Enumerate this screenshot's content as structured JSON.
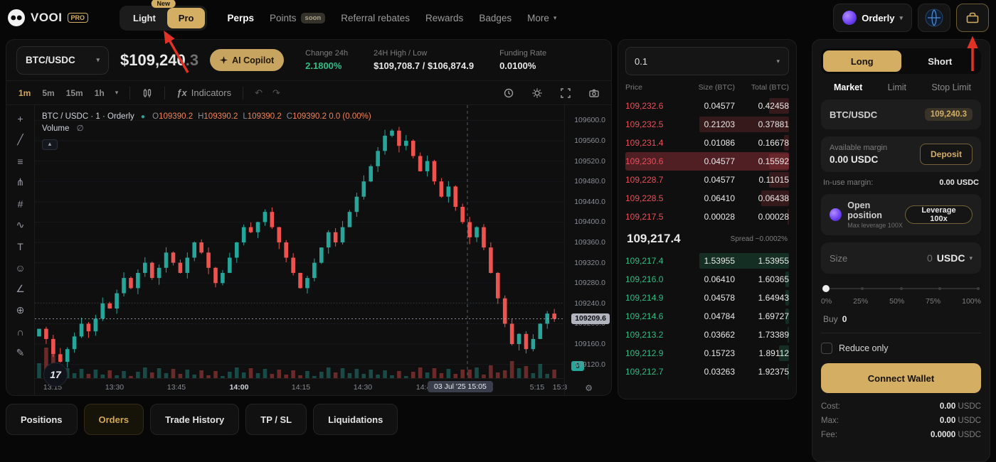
{
  "colors": {
    "accent_tan": "#d3ae63",
    "green": "#2ebd85",
    "red": "#e8505b",
    "chart_up": "#26a69a",
    "chart_down": "#ef5350"
  },
  "navbar": {
    "logo_text": "VOOI",
    "logo_badge": "PRO",
    "mode_toggle": {
      "new_badge": "New",
      "light": "Light",
      "pro": "Pro"
    },
    "links": [
      {
        "label": "Perps",
        "active": true
      },
      {
        "label": "Points",
        "badge": "soon"
      },
      {
        "label": "Referral rebates"
      },
      {
        "label": "Rewards"
      },
      {
        "label": "Badges"
      },
      {
        "label": "More",
        "chevron": true
      }
    ],
    "broker_label": "Orderly"
  },
  "market_header": {
    "pair": "BTC/USDC",
    "price_main": "$109,240",
    "price_fraction": ".3",
    "ai_copilot_label": "AI Copilot",
    "stats": [
      {
        "label": "Change 24h",
        "value": "2.1800%",
        "color": "green"
      },
      {
        "label": "24H High / Low",
        "value": "$109,708.7 / $106,874.9",
        "color": "white"
      },
      {
        "label": "Funding Rate",
        "value": "0.0100%",
        "color": "white"
      }
    ]
  },
  "chart_toolbar": {
    "timeframes": [
      "1m",
      "5m",
      "15m",
      "1h"
    ],
    "active_timeframe": "1m",
    "fx_label": "ƒx",
    "indicators_label": "Indicators"
  },
  "chart": {
    "legend_title": "BTC / USDC · 1 · Orderly",
    "ohlc": [
      {
        "k": "O",
        "v": "109390.2"
      },
      {
        "k": "H",
        "v": "109390.2"
      },
      {
        "k": "L",
        "v": "109390.2"
      },
      {
        "k": "C",
        "v": "109390.2"
      }
    ],
    "change": "0.0 (0.00%)",
    "volume_label": "Volume",
    "volume_value": "∅",
    "tv_logo_text": "17",
    "current_price": "109209.6",
    "volume_badge": "0",
    "crosshair_date": "03 Jul '25  15:05",
    "axis_labels": [
      "109600.0",
      "109560.0",
      "109520.0",
      "109480.0",
      "109440.0",
      "109400.0",
      "109360.0",
      "109320.0",
      "109280.0",
      "109240.0",
      "109200.0",
      "109160.0",
      "109120.0"
    ],
    "time_labels": [
      "13:15",
      "13:30",
      "13:45",
      "14:00",
      "14:15",
      "14:30",
      "14:45"
    ],
    "time_labels_after": [
      "5:15",
      "15:3"
    ],
    "tools": [
      {
        "name": "crosshair",
        "glyph": "+"
      },
      {
        "name": "trend-line",
        "glyph": "╱"
      },
      {
        "name": "horizontal-line",
        "glyph": "≡"
      },
      {
        "name": "pitchfork",
        "glyph": "⋔"
      },
      {
        "name": "fib-retracement",
        "glyph": "#"
      },
      {
        "name": "brush",
        "glyph": "∿"
      },
      {
        "name": "text-tool",
        "glyph": "T"
      },
      {
        "name": "emoji",
        "glyph": "☺"
      },
      {
        "name": "measure",
        "glyph": "∠"
      },
      {
        "name": "zoom",
        "glyph": "⊕"
      },
      {
        "name": "magnet",
        "glyph": "∩"
      },
      {
        "name": "draw",
        "glyph": "✎"
      }
    ]
  },
  "chart_data": {
    "type": "candlestick",
    "symbol": "BTC/USDC",
    "interval": "1m",
    "price_range": [
      109120,
      109600
    ],
    "current_price": 109209.6,
    "closes": [
      109190,
      109170,
      109140,
      109125,
      109150,
      109175,
      109200,
      109185,
      109210,
      109240,
      109230,
      109260,
      109290,
      109270,
      109300,
      109320,
      109290,
      109310,
      109340,
      109320,
      109300,
      109330,
      109360,
      109340,
      109310,
      109280,
      109300,
      109330,
      109360,
      109390,
      109380,
      109400,
      109420,
      109390,
      109360,
      109330,
      109300,
      109270,
      109290,
      109320,
      109350,
      109380,
      109360,
      109390,
      109420,
      109450,
      109480,
      109510,
      109540,
      109570,
      109580,
      109550,
      109560,
      109530,
      109500,
      109520,
      109480,
      109450,
      109470,
      109430,
      109400,
      109370,
      109390,
      109350,
      109300,
      109250,
      109200,
      109160,
      109180,
      109150,
      109170,
      109200,
      109220,
      109209.6
    ]
  },
  "orderbook": {
    "grouping": "0.1",
    "headers": [
      "Price",
      "Size (BTC)",
      "Total (BTC)"
    ],
    "asks": [
      {
        "price": "109,232.6",
        "size": "0.04577",
        "total": "0.42458",
        "depth": 12
      },
      {
        "price": "109,232.5",
        "size": "0.21203",
        "total": "0.37881",
        "depth": 55
      },
      {
        "price": "109,231.4",
        "size": "0.01086",
        "total": "0.16678",
        "depth": 3
      },
      {
        "price": "109,230.6",
        "size": "0.04577",
        "total": "0.15592",
        "depth": 12,
        "highlight": true
      },
      {
        "price": "109,228.7",
        "size": "0.04577",
        "total": "0.11015",
        "depth": 12
      },
      {
        "price": "109,228.5",
        "size": "0.06410",
        "total": "0.06438",
        "depth": 17
      },
      {
        "price": "109,217.5",
        "size": "0.00028",
        "total": "0.00028",
        "depth": 1
      }
    ],
    "mid_price": "109,217.4",
    "spread": "Spread ~0.0002%",
    "bids": [
      {
        "price": "109,217.4",
        "size": "1.53955",
        "total": "1.53955",
        "depth": 55
      },
      {
        "price": "109,216.0",
        "size": "0.06410",
        "total": "1.60365",
        "depth": 2
      },
      {
        "price": "109,214.9",
        "size": "0.04578",
        "total": "1.64943",
        "depth": 2
      },
      {
        "price": "109,214.6",
        "size": "0.04784",
        "total": "1.69727",
        "depth": 2
      },
      {
        "price": "109,213.2",
        "size": "0.03662",
        "total": "1.73389",
        "depth": 1
      },
      {
        "price": "109,212.9",
        "size": "0.15723",
        "total": "1.89112",
        "depth": 6
      },
      {
        "price": "109,212.7",
        "size": "0.03263",
        "total": "1.92375",
        "depth": 1
      }
    ]
  },
  "trade_panel": {
    "long_label": "Long",
    "short_label": "Short",
    "order_tabs": [
      {
        "label": "Market",
        "active": true
      },
      {
        "label": "Limit"
      },
      {
        "label": "Stop Limit"
      }
    ],
    "pair": "BTC/USDC",
    "pair_price": "109,240.3",
    "available_label": "Available margin",
    "available_value": "0.00 USDC",
    "deposit_label": "Deposit",
    "inuse_label": "In-use margin:",
    "inuse_value": "0.00 USDC",
    "position_title": "Open position",
    "position_sub": "Max leverage 100X",
    "leverage_label": "Leverage 100x",
    "size_label": "Size",
    "size_value": "0",
    "size_currency": "USDC",
    "slider_labels": [
      "0%",
      "25%",
      "50%",
      "75%",
      "100%"
    ],
    "buy_label": "Buy",
    "buy_value": "0",
    "reduce_only_label": "Reduce only",
    "connect_wallet_label": "Connect Wallet",
    "summary": [
      {
        "label": "Cost:",
        "value": "0.00",
        "unit": "USDC"
      },
      {
        "label": "Max:",
        "value": "0.00",
        "unit": "USDC"
      },
      {
        "label": "Fee:",
        "value": "0.0000",
        "unit": "USDC"
      }
    ]
  },
  "bottom_tabs": [
    {
      "label": "Positions"
    },
    {
      "label": "Orders",
      "active": true
    },
    {
      "label": "Trade History"
    },
    {
      "label": "TP / SL"
    },
    {
      "label": "Liquidations"
    }
  ]
}
